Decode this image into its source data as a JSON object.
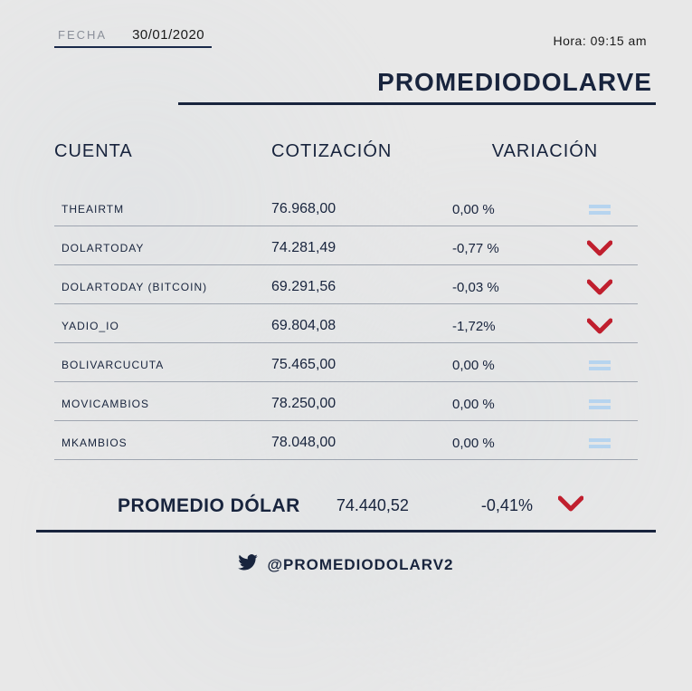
{
  "colors": {
    "navy": "#18243d",
    "muted": "#8a8f99",
    "downArrow": "#c01f2e",
    "flatBar": "#b6d4ef",
    "bg": "#e8e8e8"
  },
  "header": {
    "fecha_label": "FECHA",
    "fecha_value": "30/01/2020",
    "hora_label": "Hora:",
    "hora_value": "09:15 am",
    "brand": "PROMEDIODOLARVE"
  },
  "columns": {
    "cuenta": "CUENTA",
    "cotizacion": "COTIZACIÓN",
    "variacion": "VARIACIÓN"
  },
  "rows": [
    {
      "cuenta": "THEAIRTM",
      "cotizacion": "76.968,00",
      "variacion": "0,00 %",
      "trend": "flat"
    },
    {
      "cuenta": "DOLARTODAY",
      "cotizacion": "74.281,49",
      "variacion": "-0,77 %",
      "trend": "down"
    },
    {
      "cuenta": "DOLARTODAY (BITCOIN)",
      "cotizacion": "69.291,56",
      "variacion": "-0,03 %",
      "trend": "down"
    },
    {
      "cuenta": "YADIO_IO",
      "cotizacion": "69.804,08",
      "variacion": "-1,72%",
      "trend": "down"
    },
    {
      "cuenta": "BOLIVARCUCUTA",
      "cotizacion": "75.465,00",
      "variacion": "0,00 %",
      "trend": "flat"
    },
    {
      "cuenta": "MOVICAMBIOS",
      "cotizacion": "78.250,00",
      "variacion": "0,00 %",
      "trend": "flat"
    },
    {
      "cuenta": "MKAMBIOS",
      "cotizacion": "78.048,00",
      "variacion": "0,00 %",
      "trend": "flat"
    }
  ],
  "average": {
    "label": "PROMEDIO DÓLAR",
    "value": "74.440,52",
    "variation": "-0,41%",
    "trend": "down"
  },
  "footer": {
    "handle": "@PROMEDIODOLARV2"
  }
}
